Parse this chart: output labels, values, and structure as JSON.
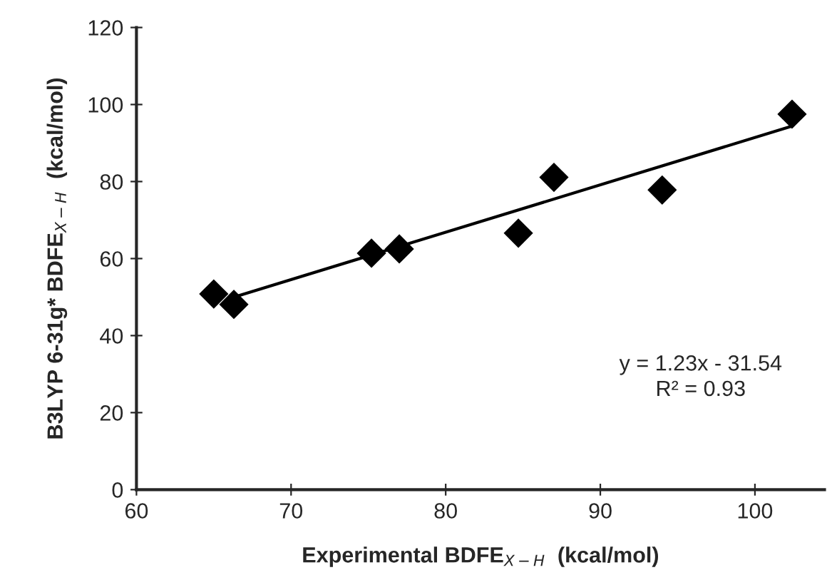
{
  "chart_data": {
    "type": "scatter",
    "xlabel": "Experimental BDFE$_{X−H}$  (kcal/mol)",
    "ylabel": "B3LYP 6-31g* BDFE$_{X−H}$  (kcal/mol)",
    "series": [
      {
        "color": "#000000",
        "marker": "diamond",
        "x": [
          65.0,
          66.3,
          75.2,
          77.0,
          84.7,
          87.0,
          94.0,
          102.4
        ],
        "values": [
          50.8,
          48.1,
          61.4,
          62.5,
          66.6,
          81.1,
          77.8,
          97.5
        ]
      },
      {
        "type": "line",
        "color": "#000000",
        "line_style": "solid",
        "x": [
          66.3,
          102.4
        ],
        "values": [
          50.0,
          94.4
        ]
      }
    ],
    "annotations": [
      "y = 1.23x - 31.54",
      "R² = 0.93"
    ],
    "xlim": [
      60,
      104.5
    ],
    "xticks": [
      60,
      70,
      80,
      90,
      100
    ],
    "ylim": [
      0,
      120
    ],
    "yticks": [
      0,
      20,
      40,
      60,
      80,
      100,
      120
    ],
    "grid": false,
    "legend": false
  }
}
